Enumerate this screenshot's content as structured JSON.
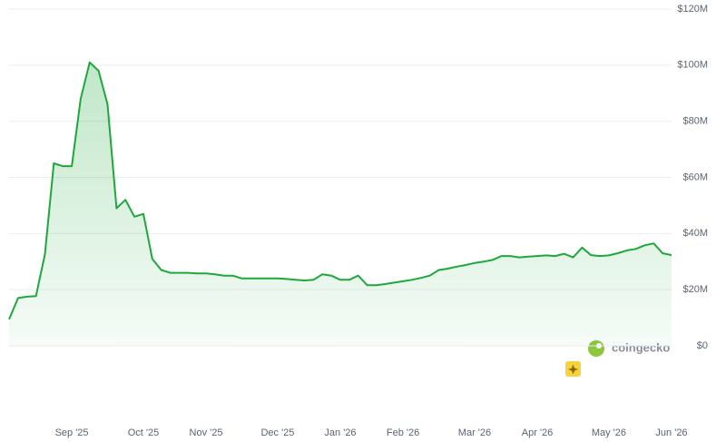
{
  "chart_data": {
    "type": "area",
    "categories": [
      null,
      null,
      null,
      null,
      null,
      null,
      null,
      "Sep '25",
      null,
      null,
      null,
      null,
      null,
      null,
      null,
      "Oct '25",
      null,
      null,
      null,
      null,
      null,
      null,
      "Nov '25",
      null,
      null,
      null,
      null,
      null,
      null,
      null,
      "Dec '25",
      null,
      null,
      null,
      null,
      null,
      null,
      "Jan '26",
      null,
      null,
      null,
      null,
      null,
      null,
      "Feb '26",
      null,
      null,
      null,
      null,
      null,
      null,
      null,
      "Mar '26",
      null,
      null,
      null,
      null,
      null,
      null,
      "Apr '26",
      null,
      null,
      null,
      null,
      null,
      null,
      null,
      "May '26",
      null,
      null,
      null,
      null,
      null,
      null,
      "Jun '26"
    ],
    "series": [
      {
        "color": "#1ea83c",
        "values": [
          9400000,
          17000000,
          17500000,
          17700000,
          32600000,
          65000000,
          64000000,
          64000000,
          88000000,
          101000000,
          98000000,
          86000000,
          49000000,
          52000000,
          46000000,
          47000000,
          31000000,
          27000000,
          26000000,
          26000000,
          26000000,
          25800000,
          25800000,
          25500000,
          25000000,
          25000000,
          24000000,
          24000000,
          24000000,
          24000000,
          24000000,
          23800000,
          23500000,
          23300000,
          23500000,
          25500000,
          25000000,
          23500000,
          23500000,
          25000000,
          21600000,
          21600000,
          22000000,
          22500000,
          23000000,
          23500000,
          24200000,
          25000000,
          27000000,
          27500000,
          28200000,
          28800000,
          29500000,
          30000000,
          30600000,
          32000000,
          32000000,
          31500000,
          31800000,
          32000000,
          32200000,
          32000000,
          32800000,
          31500000,
          35000000,
          32300000,
          32000000,
          32200000,
          33000000,
          34000000,
          34500000,
          35800000,
          36500000,
          33000000,
          32300000
        ]
      }
    ],
    "ylim": [
      0,
      120000000
    ],
    "yticks": [
      {
        "value": 0,
        "label": "$0"
      },
      {
        "value": 20000000,
        "label": "$20M"
      },
      {
        "value": 40000000,
        "label": "$40M"
      },
      {
        "value": 60000000,
        "label": "$60M"
      },
      {
        "value": 80000000,
        "label": "$80M"
      },
      {
        "value": 100000000,
        "label": "$100M"
      },
      {
        "value": 120000000,
        "label": "$120M"
      }
    ],
    "grid": true,
    "watermark": "coingecko"
  }
}
